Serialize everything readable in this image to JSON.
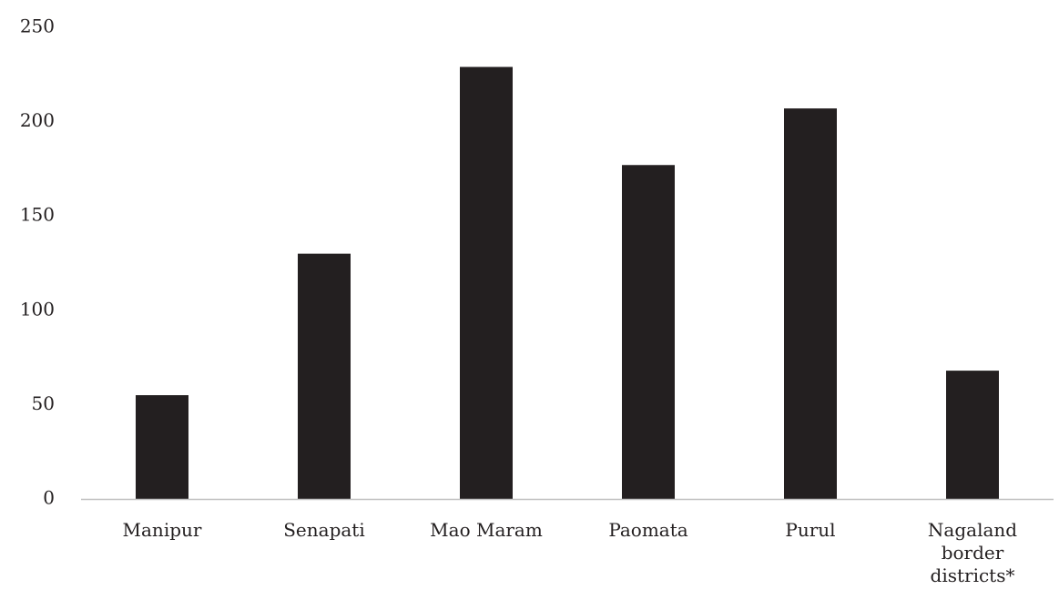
{
  "chart_data": {
    "type": "bar",
    "categories": [
      "Manipur",
      "Senapati",
      "Mao Maram",
      "Paomata",
      "Purul",
      "Nagaland border districts*"
    ],
    "category_label_lines": [
      [
        "Manipur"
      ],
      [
        "Senapati"
      ],
      [
        "Mao Maram"
      ],
      [
        "Paomata"
      ],
      [
        "Purul"
      ],
      [
        "Nagaland",
        "border",
        "districts*"
      ]
    ],
    "values": [
      55,
      130,
      229,
      177,
      207,
      68
    ],
    "ylim": [
      0,
      250
    ],
    "yticks": [
      0,
      50,
      100,
      150,
      200,
      250
    ],
    "title": "",
    "xlabel": "",
    "ylabel": "",
    "grid": false,
    "legend": "none",
    "colors": {
      "bar": "#231f20",
      "axis": "#bfbfbf",
      "text": "#231f20"
    }
  }
}
